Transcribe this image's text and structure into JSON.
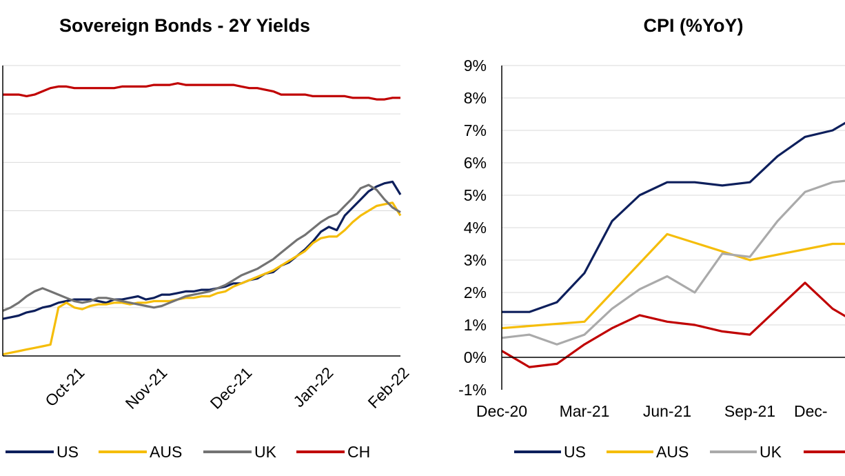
{
  "chart_data": [
    {
      "type": "line",
      "title": "Sovereign Bonds - 2Y Yields",
      "x_ticks": [
        "Oct-21",
        "Nov-21",
        "Dec-21",
        "Jan-22",
        "Feb-22"
      ],
      "y_ticks_visible": false,
      "grid": true,
      "legend_position": "bottom",
      "series": [
        {
          "name": "US",
          "color": "#0d1f5c",
          "x": [
            0,
            2,
            4,
            6,
            8,
            10,
            12,
            14,
            16,
            18,
            20,
            22,
            24,
            26,
            28,
            30,
            32,
            34,
            36,
            38,
            40,
            42,
            44,
            46,
            48,
            50,
            52,
            54,
            56,
            58,
            60,
            62,
            64,
            66,
            68,
            70,
            72,
            74,
            76,
            78,
            80,
            82,
            84,
            86,
            88,
            90,
            92,
            94,
            96,
            98,
            100
          ],
          "values": [
            0.23,
            0.24,
            0.25,
            0.27,
            0.28,
            0.3,
            0.31,
            0.33,
            0.34,
            0.35,
            0.35,
            0.35,
            0.34,
            0.33,
            0.35,
            0.35,
            0.36,
            0.37,
            0.35,
            0.36,
            0.38,
            0.38,
            0.39,
            0.4,
            0.4,
            0.41,
            0.41,
            0.42,
            0.43,
            0.45,
            0.45,
            0.47,
            0.48,
            0.51,
            0.52,
            0.56,
            0.58,
            0.62,
            0.66,
            0.71,
            0.77,
            0.8,
            0.78,
            0.87,
            0.92,
            0.97,
            1.02,
            1.05,
            1.07,
            1.08,
            1.0
          ]
        },
        {
          "name": "AUS",
          "color": "#f5bd0a",
          "x": [
            0,
            2,
            4,
            6,
            8,
            10,
            12,
            14,
            16,
            18,
            20,
            22,
            24,
            26,
            28,
            30,
            32,
            34,
            36,
            38,
            40,
            42,
            44,
            46,
            48,
            50,
            52,
            54,
            56,
            58,
            60,
            62,
            64,
            66,
            68,
            70,
            72,
            74,
            76,
            78,
            80,
            82,
            84,
            86,
            88,
            90,
            92,
            94,
            96,
            98,
            100
          ],
          "values": [
            0.01,
            0.02,
            0.03,
            0.04,
            0.05,
            0.06,
            0.07,
            0.3,
            0.33,
            0.3,
            0.29,
            0.31,
            0.32,
            0.32,
            0.33,
            0.33,
            0.32,
            0.33,
            0.33,
            0.34,
            0.34,
            0.34,
            0.35,
            0.36,
            0.36,
            0.37,
            0.37,
            0.39,
            0.4,
            0.43,
            0.45,
            0.47,
            0.49,
            0.51,
            0.53,
            0.56,
            0.59,
            0.62,
            0.65,
            0.7,
            0.73,
            0.74,
            0.74,
            0.78,
            0.83,
            0.87,
            0.9,
            0.93,
            0.94,
            0.95,
            0.87
          ]
        },
        {
          "name": "UK",
          "color": "#737373",
          "x": [
            0,
            2,
            4,
            6,
            8,
            10,
            12,
            14,
            16,
            18,
            20,
            22,
            24,
            26,
            28,
            30,
            32,
            34,
            36,
            38,
            40,
            42,
            44,
            46,
            48,
            50,
            52,
            54,
            56,
            58,
            60,
            62,
            64,
            66,
            68,
            70,
            72,
            74,
            76,
            78,
            80,
            82,
            84,
            86,
            88,
            90,
            92,
            94,
            96,
            98,
            100
          ],
          "values": [
            0.28,
            0.3,
            0.33,
            0.37,
            0.4,
            0.42,
            0.4,
            0.38,
            0.36,
            0.34,
            0.33,
            0.34,
            0.36,
            0.36,
            0.35,
            0.34,
            0.33,
            0.32,
            0.31,
            0.3,
            0.31,
            0.33,
            0.35,
            0.37,
            0.38,
            0.39,
            0.4,
            0.42,
            0.44,
            0.47,
            0.5,
            0.52,
            0.54,
            0.57,
            0.6,
            0.64,
            0.68,
            0.72,
            0.75,
            0.79,
            0.83,
            0.86,
            0.88,
            0.93,
            0.98,
            1.04,
            1.06,
            1.03,
            0.97,
            0.92,
            0.89
          ]
        },
        {
          "name": "CH",
          "color": "#c00000",
          "x": [
            0,
            2,
            4,
            6,
            8,
            10,
            12,
            14,
            16,
            18,
            20,
            22,
            24,
            26,
            28,
            30,
            32,
            34,
            36,
            38,
            40,
            42,
            44,
            46,
            48,
            50,
            52,
            54,
            56,
            58,
            60,
            62,
            64,
            66,
            68,
            70,
            72,
            74,
            76,
            78,
            80,
            82,
            84,
            86,
            88,
            90,
            92,
            94,
            96,
            98,
            100
          ],
          "values": [
            1.62,
            1.62,
            1.62,
            1.61,
            1.62,
            1.64,
            1.66,
            1.67,
            1.67,
            1.66,
            1.66,
            1.66,
            1.66,
            1.66,
            1.66,
            1.67,
            1.67,
            1.67,
            1.67,
            1.68,
            1.68,
            1.68,
            1.69,
            1.68,
            1.68,
            1.68,
            1.68,
            1.68,
            1.68,
            1.68,
            1.67,
            1.66,
            1.66,
            1.65,
            1.64,
            1.62,
            1.62,
            1.62,
            1.62,
            1.61,
            1.61,
            1.61,
            1.61,
            1.61,
            1.6,
            1.6,
            1.6,
            1.59,
            1.59,
            1.6,
            1.6
          ]
        }
      ]
    },
    {
      "type": "line",
      "title": "CPI (%YoY)",
      "x_ticks": [
        "Dec-20",
        "Mar-21",
        "Jun-21",
        "Sep-21",
        "Dec-"
      ],
      "y_ticks": [
        "-1%",
        "0%",
        "1%",
        "2%",
        "3%",
        "4%",
        "5%",
        "6%",
        "7%",
        "8%",
        "9%"
      ],
      "ylim": [
        -1,
        9
      ],
      "grid": true,
      "legend_position": "bottom",
      "series": [
        {
          "name": "US",
          "color": "#0d1f5c",
          "x": [
            0,
            1,
            2,
            3,
            4,
            5,
            6,
            7,
            8,
            9,
            10,
            11,
            12,
            13
          ],
          "values": [
            1.4,
            1.4,
            1.7,
            2.6,
            4.2,
            5.0,
            5.4,
            5.4,
            5.3,
            5.4,
            6.2,
            6.8,
            7.0,
            7.5
          ]
        },
        {
          "name": "AUS",
          "color": "#f5bd0a",
          "x": [
            0,
            3,
            6,
            9,
            12,
            13
          ],
          "values": [
            0.9,
            1.1,
            3.8,
            3.0,
            3.5,
            3.5
          ]
        },
        {
          "name": "UK",
          "color": "#aaaaaa",
          "x": [
            0,
            1,
            2,
            3,
            4,
            5,
            6,
            7,
            8,
            9,
            10,
            11,
            12,
            13
          ],
          "values": [
            0.6,
            0.7,
            0.4,
            0.7,
            1.5,
            2.1,
            2.5,
            2.0,
            3.2,
            3.1,
            4.2,
            5.1,
            5.4,
            5.5
          ]
        },
        {
          "name": "CH",
          "color": "#c00000",
          "x": [
            0,
            1,
            2,
            3,
            4,
            5,
            6,
            7,
            8,
            9,
            10,
            11,
            12,
            13
          ],
          "values": [
            0.2,
            -0.3,
            -0.2,
            0.4,
            0.9,
            1.3,
            1.1,
            1.0,
            0.8,
            0.7,
            1.5,
            2.3,
            1.5,
            1.0
          ]
        }
      ]
    }
  ]
}
